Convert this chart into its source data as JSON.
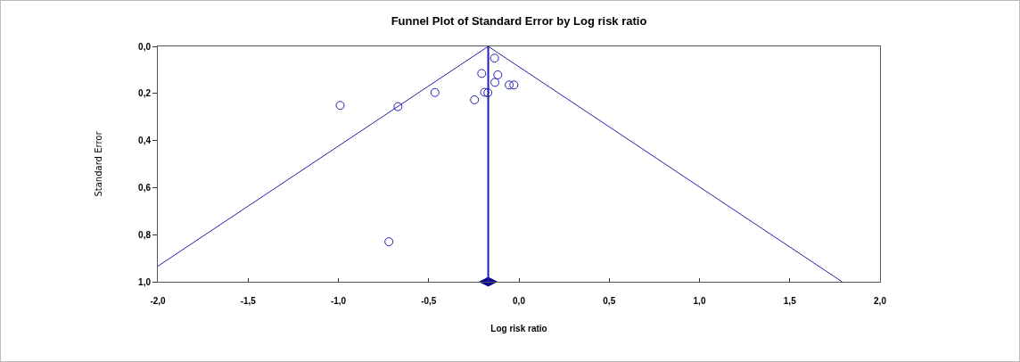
{
  "chart_data": {
    "type": "scatter",
    "title": "Funnel Plot of Standard Error by Log risk ratio",
    "xlabel": "Log risk ratio",
    "ylabel": "Standard Error",
    "series": [
      {
        "type": "scatter",
        "marker": "circle",
        "color": "#2020b0",
        "x": [
          -0.135,
          -0.206,
          -0.117,
          -0.133,
          -0.054,
          -0.028,
          -0.19,
          -0.172,
          -0.246,
          -0.465,
          -0.67,
          -0.99,
          -0.72
        ],
        "values": [
          0.05,
          0.115,
          0.121,
          0.153,
          0.164,
          0.164,
          0.195,
          0.197,
          0.227,
          0.196,
          0.256,
          0.251,
          0.83
        ]
      },
      {
        "type": "line",
        "marker": "none",
        "color": "#2020b0",
        "x": [
          -2.0,
          -0.17,
          1.79
        ],
        "values": [
          0.934,
          0.0,
          1.0
        ]
      },
      {
        "type": "scatter",
        "marker": "diamond",
        "color": "#0a0a90",
        "x": [
          -0.17
        ],
        "values": [
          1.0
        ]
      }
    ],
    "ref_lines": [
      {
        "axis": "x",
        "value": -0.17,
        "color": "#2020b0"
      }
    ],
    "xlim": [
      -2.0,
      2.0
    ],
    "ylim": [
      1.0,
      0.0
    ],
    "xticks": [
      {
        "value": -2,
        "label": "-2,0"
      },
      {
        "value": -1.5,
        "label": "-1,5"
      },
      {
        "value": -1,
        "label": "-1,0"
      },
      {
        "value": -0.5,
        "label": "-0,5"
      },
      {
        "value": 0,
        "label": "0,0"
      },
      {
        "value": 0.5,
        "label": "0,5"
      },
      {
        "value": 1,
        "label": "1,0"
      },
      {
        "value": 1.5,
        "label": "1,5"
      },
      {
        "value": 2,
        "label": "2,0"
      }
    ],
    "yticks": [
      {
        "value": 0,
        "label": "0,0"
      },
      {
        "value": 0.2,
        "label": "0,2"
      },
      {
        "value": 0.4,
        "label": "0,4"
      },
      {
        "value": 0.6,
        "label": "0,6"
      },
      {
        "value": 0.8,
        "label": "0,8"
      },
      {
        "value": 1,
        "label": "1,0"
      }
    ],
    "grid": false
  }
}
